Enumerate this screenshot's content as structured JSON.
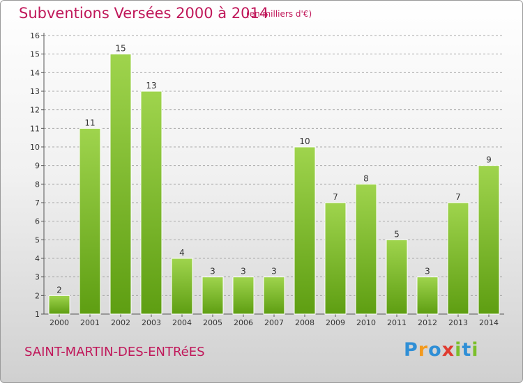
{
  "title": "Subventions Versées 2000 à 2014",
  "unit_note": "(en milliers d'€)",
  "place": "SAINT-MARTIN-DES-ENTRéES",
  "logo": {
    "letters": [
      {
        "char": "P",
        "color": "#2f8fd6"
      },
      {
        "char": "r",
        "color": "#f39a1e"
      },
      {
        "char": "o",
        "color": "#2f8fd6"
      },
      {
        "char": "x",
        "color": "#e03c31"
      },
      {
        "char": "i",
        "color": "#7bbf2a"
      },
      {
        "char": "t",
        "color": "#2f8fd6"
      },
      {
        "char": "i",
        "color": "#7bbf2a"
      }
    ]
  },
  "colors": {
    "accent": "#c0185a",
    "bar_top": "#9fd44d",
    "bar_bottom": "#5e9e12",
    "grid": "#a8a8a8",
    "text": "#333333"
  },
  "chart_data": {
    "type": "bar",
    "categories": [
      "2000",
      "2001",
      "2002",
      "2003",
      "2004",
      "2005",
      "2006",
      "2007",
      "2008",
      "2009",
      "2010",
      "2011",
      "2012",
      "2013",
      "2014"
    ],
    "values": [
      2,
      11,
      15,
      13,
      4,
      3,
      3,
      3,
      10,
      7,
      8,
      5,
      3,
      7,
      9
    ],
    "ylim": [
      1,
      16
    ],
    "yticks": [
      1,
      2,
      3,
      4,
      5,
      6,
      7,
      8,
      9,
      10,
      11,
      12,
      13,
      14,
      15,
      16
    ],
    "grid": "horizontal dashed",
    "data_labels": true
  }
}
